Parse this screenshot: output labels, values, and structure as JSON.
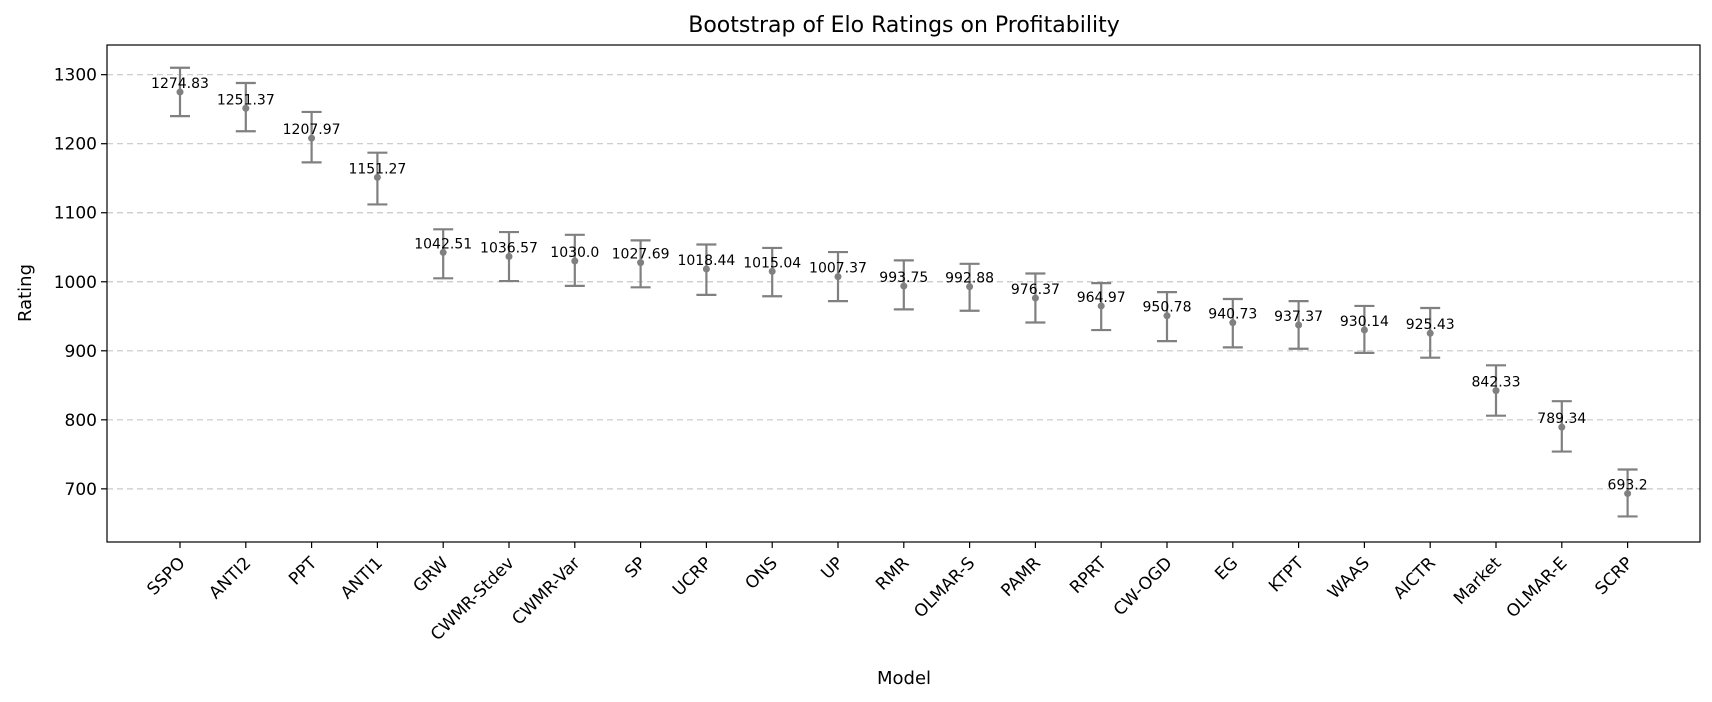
{
  "chart_data": {
    "type": "scatter",
    "title": "Bootstrap of Elo Ratings on Profitability",
    "xlabel": "Model",
    "ylabel": "Rating",
    "ylim": [
      623,
      1343
    ],
    "yticks": [
      700,
      800,
      900,
      1000,
      1100,
      1200,
      1300
    ],
    "grid": "y-dashed",
    "marker_color": "#808080",
    "points": [
      {
        "model": "SSPO",
        "rating": 1274.83,
        "label": "1274.83",
        "low": 1240,
        "high": 1310
      },
      {
        "model": "ANTI2",
        "rating": 1251.37,
        "label": "1251.37",
        "low": 1218,
        "high": 1288
      },
      {
        "model": "PPT",
        "rating": 1207.97,
        "label": "1207.97",
        "low": 1173,
        "high": 1246
      },
      {
        "model": "ANTI1",
        "rating": 1151.27,
        "label": "1151.27",
        "low": 1112,
        "high": 1187
      },
      {
        "model": "GRW",
        "rating": 1042.51,
        "label": "1042.51",
        "low": 1005,
        "high": 1076
      },
      {
        "model": "CWMR-Stdev",
        "rating": 1036.57,
        "label": "1036.57",
        "low": 1001,
        "high": 1072
      },
      {
        "model": "CWMR-Var",
        "rating": 1030.0,
        "label": "1030.0",
        "low": 994,
        "high": 1068
      },
      {
        "model": "SP",
        "rating": 1027.69,
        "label": "1027.69",
        "low": 992,
        "high": 1060
      },
      {
        "model": "UCRP",
        "rating": 1018.44,
        "label": "1018.44",
        "low": 981,
        "high": 1054
      },
      {
        "model": "ONS",
        "rating": 1015.04,
        "label": "1015.04",
        "low": 979,
        "high": 1049
      },
      {
        "model": "UP",
        "rating": 1007.37,
        "label": "1007.37",
        "low": 972,
        "high": 1043
      },
      {
        "model": "RMR",
        "rating": 993.75,
        "label": "993.75",
        "low": 960,
        "high": 1031
      },
      {
        "model": "OLMAR-S",
        "rating": 992.88,
        "label": "992.88",
        "low": 958,
        "high": 1026
      },
      {
        "model": "PAMR",
        "rating": 976.37,
        "label": "976.37",
        "low": 941,
        "high": 1012
      },
      {
        "model": "RPRT",
        "rating": 964.97,
        "label": "964.97",
        "low": 930,
        "high": 998
      },
      {
        "model": "CW-OGD",
        "rating": 950.78,
        "label": "950.78",
        "low": 914,
        "high": 985
      },
      {
        "model": "EG",
        "rating": 940.73,
        "label": "940.73",
        "low": 905,
        "high": 975
      },
      {
        "model": "KTPT",
        "rating": 937.37,
        "label": "937.37",
        "low": 903,
        "high": 972
      },
      {
        "model": "WAAS",
        "rating": 930.14,
        "label": "930.14",
        "low": 897,
        "high": 965
      },
      {
        "model": "AICTR",
        "rating": 925.43,
        "label": "925.43",
        "low": 890,
        "high": 962
      },
      {
        "model": "Market",
        "rating": 842.33,
        "label": "842.33",
        "low": 806,
        "high": 879
      },
      {
        "model": "OLMAR-E",
        "rating": 789.34,
        "label": "789.34",
        "low": 754,
        "high": 827
      },
      {
        "model": "SCRP",
        "rating": 693.2,
        "label": "693.2",
        "low": 660,
        "high": 728
      }
    ]
  }
}
